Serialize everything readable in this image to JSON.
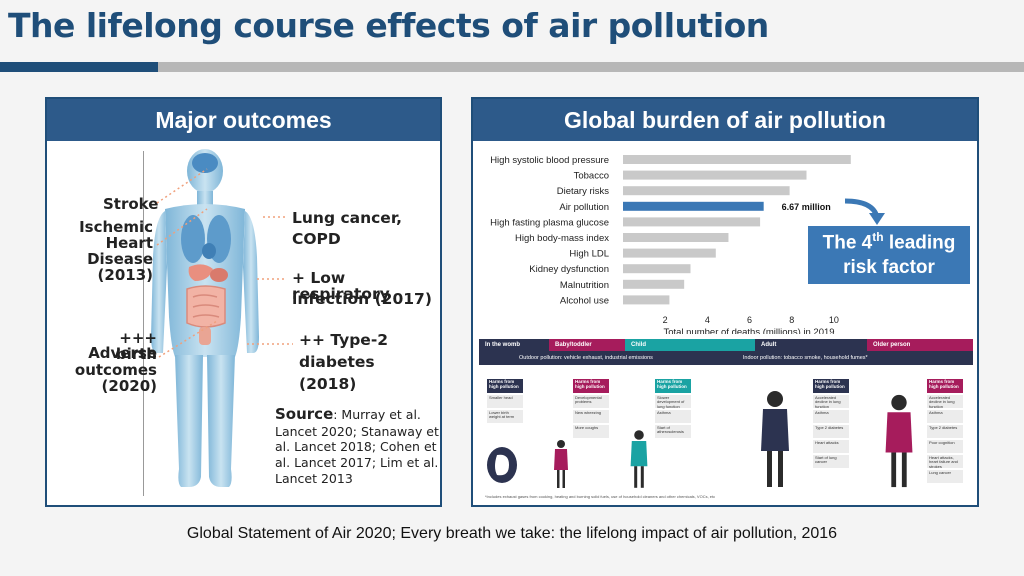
{
  "title": "The lifelong course effects of air pollution",
  "left_panel": {
    "header": "Major outcomes",
    "labels": {
      "stroke": "Stroke",
      "ihd_1": "Ischemic",
      "ihd_2": "Heart",
      "ihd_3": "Disease",
      "ihd_4": "(2013)",
      "birth_1": "+++ Adverse",
      "birth_2": "birth",
      "birth_3": "outcomes",
      "birth_4": "(2020)",
      "lung_1": "Lung cancer,",
      "lung_2": "COPD",
      "resp_1": "+ Low respiratory",
      "resp_2": "infection (2017)",
      "t2d_1": "++ Type-2",
      "t2d_2": "diabetes",
      "t2d_3": "(2018)"
    },
    "source_heading": "Source",
    "source_text": ": Murray et al. Lancet 2020; Stanaway et al. Lancet 2018; Cohen et al. Lancet 2017; Lim et al. Lancet 2013"
  },
  "right_panel": {
    "header": "Global burden of air pollution",
    "callout_pre": "The 4",
    "callout_sup": "th",
    "callout_post": " leading risk factor",
    "highlight_label": "6.67 million"
  },
  "chart_data": {
    "type": "bar",
    "orientation": "horizontal",
    "categories": [
      "High systolic blood pressure",
      "Tobacco",
      "Dietary risks",
      "Air pollution",
      "High fasting plasma glucose",
      "High body-mass index",
      "High LDL",
      "Kidney dysfunction",
      "Malnutrition",
      "Alcohol use"
    ],
    "values": [
      10.8,
      8.7,
      7.9,
      6.67,
      6.5,
      5.0,
      4.4,
      3.2,
      2.9,
      2.2
    ],
    "highlight_index": 3,
    "xlabel": "Total number of deaths (millions) in 2019",
    "xticks": [
      2,
      4,
      6,
      8,
      10
    ],
    "xlim": [
      0,
      11
    ],
    "colors": {
      "default": "#c9c9c9",
      "highlight": "#3b78b5"
    }
  },
  "infographic": {
    "stages": [
      "In the womb",
      "Baby/toddler",
      "Child",
      "Adult",
      "Older person"
    ],
    "outdoor": "Outdoor pollution: vehicle exhaust, industrial emissions",
    "indoor": "Indoor pollution: tobacco smoke, household fumes*",
    "harm_heading": "Harms from high pollution",
    "columns": [
      {
        "color": "#2c3350",
        "items": [
          "Smaller head",
          "Lower birth weight at term"
        ]
      },
      {
        "color": "#a61c5c",
        "items": [
          "Developmental problems",
          "New wheezing",
          "More coughs"
        ]
      },
      {
        "color": "#1aa3a3",
        "items": [
          "Slower development of lung function",
          "Asthma",
          "Start of atherosclerosis"
        ]
      },
      {
        "color": "#2c3350",
        "items": [
          "Accelerated decline in lung function",
          "Asthma",
          "Type 2 diabetes",
          "Heart attacks",
          "Start of lung cancer"
        ]
      },
      {
        "color": "#a61c5c",
        "items": [
          "Accelerated decline in lung function",
          "Asthma",
          "Type 2 diabetes",
          "Poor cognition",
          "Heart attacks, heart failure and strokes",
          "Lung cancer"
        ]
      }
    ],
    "footnote": "*Includes exhaust gases from cooking, heating and burning solid fuels, use of household cleaners and other chemicals, VOCs, etc"
  },
  "caption": "Global Statement of Air 2020; Every breath we take: the lifelong impact of air pollution, 2016"
}
